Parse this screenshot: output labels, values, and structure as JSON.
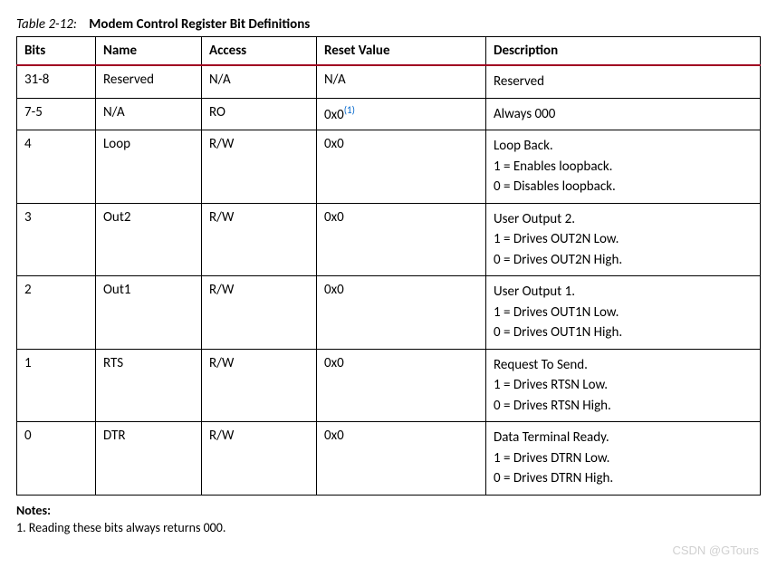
{
  "caption": {
    "label": "Table 2-12:",
    "title": "Modem Control Register Bit Definitions"
  },
  "columns": [
    "Bits",
    "Name",
    "Access",
    "Reset Value",
    "Description"
  ],
  "rows": [
    {
      "bits": "31-8",
      "name": "Reserved",
      "access": "N/A",
      "reset": "N/A",
      "reset_sup": "",
      "desc": [
        "Reserved"
      ]
    },
    {
      "bits": "7-5",
      "name": "N/A",
      "access": "RO",
      "reset": "0x0",
      "reset_sup": "(1)",
      "desc": [
        "Always 000"
      ]
    },
    {
      "bits": "4",
      "name": "Loop",
      "access": "R/W",
      "reset": "0x0",
      "reset_sup": "",
      "desc": [
        "Loop Back.",
        "1 = Enables loopback.",
        "0 = Disables loopback."
      ]
    },
    {
      "bits": "3",
      "name": "Out2",
      "access": "R/W",
      "reset": "0x0",
      "reset_sup": "",
      "desc": [
        "User Output 2.",
        "1 = Drives OUT2N Low.",
        "0 = Drives OUT2N High."
      ]
    },
    {
      "bits": "2",
      "name": "Out1",
      "access": "R/W",
      "reset": "0x0",
      "reset_sup": "",
      "desc": [
        "User Output 1.",
        "1 = Drives OUT1N Low.",
        "0 = Drives OUT1N High."
      ]
    },
    {
      "bits": "1",
      "name": "RTS",
      "access": "R/W",
      "reset": "0x0",
      "reset_sup": "",
      "desc": [
        "Request To Send.",
        "1 = Drives RTSN Low.",
        "0 = Drives RTSN High."
      ]
    },
    {
      "bits": "0",
      "name": "DTR",
      "access": "R/W",
      "reset": "0x0",
      "reset_sup": "",
      "desc": [
        "Data Terminal Ready.",
        "1 = Drives DTRN Low.",
        "0 = Drives DTRN High."
      ]
    }
  ],
  "notes": {
    "header": "Notes:",
    "items": [
      "1.  Reading these bits always returns 000."
    ]
  },
  "watermark": "CSDN @GTours"
}
